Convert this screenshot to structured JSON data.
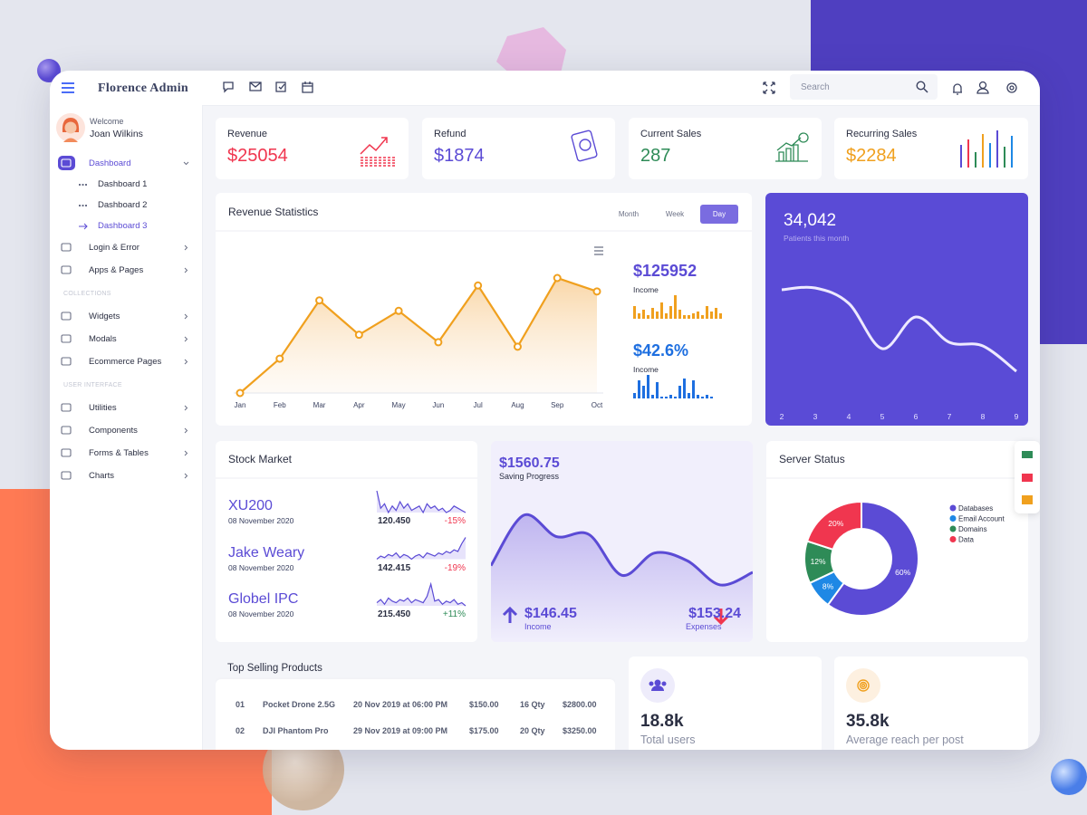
{
  "brand": "Florence Admin",
  "user": {
    "welcome": "Welcome",
    "name": "Joan Wilkins"
  },
  "nav": [
    {
      "label": "Dashboard",
      "active": true,
      "children": [
        {
          "label": "Dashboard 1"
        },
        {
          "label": "Dashboard 2"
        },
        {
          "label": "Dashboard 3",
          "active": true
        }
      ]
    },
    {
      "label": "Login & Error"
    },
    {
      "label": "Apps & Pages"
    },
    {
      "heading": "COLLECTIONS"
    },
    {
      "label": "Widgets"
    },
    {
      "label": "Modals"
    },
    {
      "label": "Ecommerce Pages"
    },
    {
      "heading": "USER INTERFACE"
    },
    {
      "label": "Utilities"
    },
    {
      "label": "Components"
    },
    {
      "label": "Forms & Tables"
    },
    {
      "label": "Charts"
    }
  ],
  "search": "Search",
  "stats": [
    {
      "label": "Revenue",
      "value": "$25054",
      "color": "#f0364f"
    },
    {
      "label": "Refund",
      "value": "$1874",
      "color": "#5b4bd5"
    },
    {
      "label": "Current Sales",
      "value": "287",
      "color": "#2e8b57"
    },
    {
      "label": "Recurring Sales",
      "value": "$2284",
      "color": "#f0a01e"
    }
  ],
  "revenue": {
    "title": "Revenue Statistics",
    "tabs": [
      "Month",
      "Week",
      "Day"
    ],
    "active_tab": 2,
    "type": "line",
    "categories": [
      "Jan",
      "Feb",
      "Mar",
      "Apr",
      "May",
      "Jun",
      "Jul",
      "Aug",
      "Sep",
      "Oct"
    ],
    "values": [
      0,
      23,
      62,
      39,
      55,
      34,
      72,
      31,
      77,
      68
    ],
    "color": "#f0a01e",
    "summaries": [
      {
        "value": "$125952",
        "label": "Income",
        "color": "#f0a01e",
        "bars": [
          14,
          6,
          10,
          4,
          12,
          8,
          18,
          6,
          14,
          26,
          10,
          4,
          4,
          6,
          8,
          4,
          14,
          8,
          12,
          6
        ]
      },
      {
        "value": "$42.6%",
        "label": "Income",
        "color": "#1e6fe0",
        "bars": [
          6,
          20,
          14,
          26,
          4,
          18,
          2,
          2,
          4,
          2,
          14,
          22,
          6,
          20,
          4,
          2,
          4,
          2
        ]
      }
    ]
  },
  "patients": {
    "value": "34,042",
    "label": "Patients this month",
    "type": "line",
    "x": [
      2,
      3,
      4,
      5,
      6,
      7,
      8,
      9
    ],
    "values": [
      150,
      152,
      135,
      85,
      120,
      92,
      88,
      60
    ]
  },
  "stock": {
    "title": "Stock Market",
    "rows": [
      {
        "name": "XU200",
        "date": "08 November 2020",
        "price": "120.450",
        "change": "-15%",
        "color": "#f0364f",
        "spark": [
          18,
          10,
          12,
          8,
          11,
          9,
          13,
          10,
          12,
          9,
          10,
          11,
          8,
          12,
          10,
          11,
          9,
          10,
          8,
          9,
          11,
          10,
          9,
          8
        ]
      },
      {
        "name": "Jake Weary",
        "date": "08 November 2020",
        "price": "142.415",
        "change": "-19%",
        "color": "#f0364f",
        "spark": [
          6,
          8,
          7,
          9,
          8,
          10,
          7,
          9,
          8,
          6,
          8,
          9,
          7,
          10,
          9,
          8,
          10,
          9,
          11,
          10,
          12,
          11,
          16,
          20
        ]
      },
      {
        "name": "Globel IPC",
        "date": "08 November 2020",
        "price": "215.450",
        "change": "+11%",
        "color": "#2e8b57",
        "spark": [
          10,
          12,
          9,
          13,
          11,
          10,
          12,
          11,
          13,
          10,
          12,
          11,
          10,
          14,
          22,
          11,
          12,
          9,
          11,
          10,
          12,
          9,
          10,
          8
        ]
      }
    ]
  },
  "saving": {
    "value": "$1560.75",
    "label": "Saving Progress",
    "type": "area",
    "values": [
      79,
      131,
      109,
      111,
      69,
      92,
      84,
      59,
      72
    ],
    "income": {
      "value": "$146.45",
      "label": "Income"
    },
    "expenses": {
      "value": "$153.24",
      "label": "Expenses"
    }
  },
  "server": {
    "title": "Server Status",
    "type": "pie",
    "categories": [
      "Databases",
      "Email Account",
      "Domains",
      "Data"
    ],
    "values": [
      60,
      8,
      12,
      20
    ],
    "value_labels": [
      "60%",
      "8%",
      "12%",
      "20%"
    ],
    "colors": [
      "#5b4bd5",
      "#1e88e5",
      "#2e8b57",
      "#f0364f"
    ]
  },
  "products": {
    "title": "Top Selling Products",
    "rows": [
      [
        "01",
        "Pocket Drone 2.5G",
        "20 Nov 2019 at 06:00 PM",
        "$150.00",
        "16 Qty",
        "$2800.00"
      ],
      [
        "02",
        "DJI Phantom Pro",
        "29 Nov 2019 at 09:00 PM",
        "$175.00",
        "20 Qty",
        "$3250.00"
      ]
    ]
  },
  "kpis": [
    {
      "value": "18.8k",
      "label": "Total users"
    },
    {
      "value": "35.8k",
      "label": "Average reach per post"
    }
  ]
}
